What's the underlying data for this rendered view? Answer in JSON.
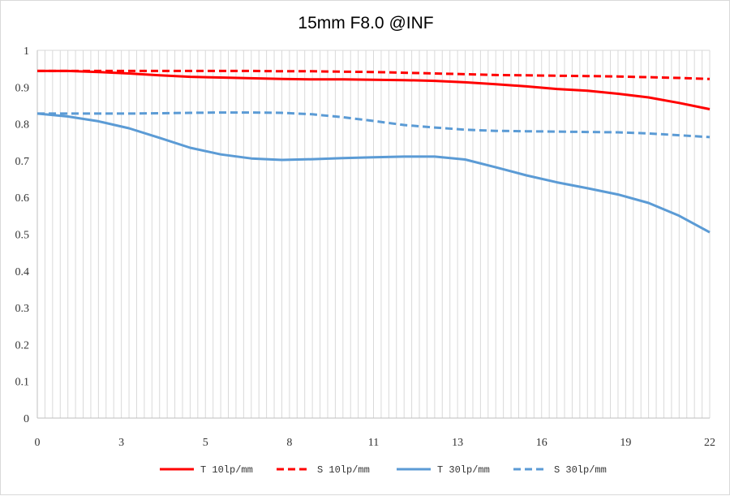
{
  "chart_data": {
    "type": "line",
    "title": "15mm F8.0 @INF",
    "xlim": [
      0,
      22
    ],
    "ylim": [
      0,
      1
    ],
    "x_tick_labels": [
      "0",
      "3",
      "5",
      "8",
      "11",
      "13",
      "16",
      "19",
      "22"
    ],
    "y_ticks": [
      0,
      0.1,
      0.2,
      0.3,
      0.4,
      0.5,
      0.6,
      0.7,
      0.8,
      0.9,
      1
    ],
    "y_tick_labels": [
      "0",
      "0.1",
      "0.2",
      "0.3",
      "0.4",
      "0.5",
      "0.6",
      "0.7",
      "0.8",
      "0.9",
      "1"
    ],
    "grid": "vertical minor lines",
    "legend_position": "bottom",
    "series": [
      {
        "name": "T 10lp/mm",
        "color": "#ff0000",
        "dash": "solid",
        "x": [
          0,
          1,
          2,
          3,
          4,
          5,
          6,
          7,
          8,
          9,
          10,
          11,
          12,
          13,
          14,
          15,
          16,
          17,
          18,
          19,
          20,
          21,
          22
        ],
        "y": [
          0.944,
          0.944,
          0.941,
          0.937,
          0.932,
          0.928,
          0.926,
          0.924,
          0.922,
          0.921,
          0.921,
          0.92,
          0.919,
          0.917,
          0.913,
          0.908,
          0.902,
          0.895,
          0.89,
          0.882,
          0.872,
          0.857,
          0.84
        ]
      },
      {
        "name": "S 10lp/mm",
        "color": "#ff0000",
        "dash": "dashed",
        "x": [
          0,
          1,
          2,
          3,
          4,
          5,
          6,
          7,
          8,
          9,
          10,
          11,
          12,
          13,
          14,
          15,
          16,
          17,
          18,
          19,
          20,
          21,
          22
        ],
        "y": [
          0.944,
          0.944,
          0.944,
          0.944,
          0.944,
          0.944,
          0.944,
          0.944,
          0.943,
          0.943,
          0.942,
          0.941,
          0.939,
          0.937,
          0.935,
          0.933,
          0.932,
          0.931,
          0.93,
          0.929,
          0.927,
          0.925,
          0.922
        ]
      },
      {
        "name": "T 30lp/mm",
        "color": "#5b9bd5",
        "dash": "solid",
        "x": [
          0,
          1,
          2,
          3,
          4,
          5,
          6,
          7,
          8,
          9,
          10,
          11,
          12,
          13,
          14,
          15,
          16,
          17,
          18,
          19,
          20,
          21,
          22
        ],
        "y": [
          0.828,
          0.82,
          0.807,
          0.788,
          0.762,
          0.735,
          0.717,
          0.706,
          0.702,
          0.704,
          0.707,
          0.709,
          0.711,
          0.711,
          0.703,
          0.682,
          0.66,
          0.641,
          0.625,
          0.608,
          0.585,
          0.55,
          0.505
        ]
      },
      {
        "name": "S 30lp/mm",
        "color": "#5b9bd5",
        "dash": "dashed",
        "x": [
          0,
          1,
          2,
          3,
          4,
          5,
          6,
          7,
          8,
          9,
          10,
          11,
          12,
          13,
          14,
          15,
          16,
          17,
          18,
          19,
          20,
          21,
          22
        ],
        "y": [
          0.828,
          0.828,
          0.828,
          0.828,
          0.829,
          0.83,
          0.831,
          0.831,
          0.83,
          0.826,
          0.818,
          0.808,
          0.797,
          0.79,
          0.784,
          0.781,
          0.78,
          0.779,
          0.778,
          0.777,
          0.774,
          0.769,
          0.764
        ]
      }
    ]
  }
}
